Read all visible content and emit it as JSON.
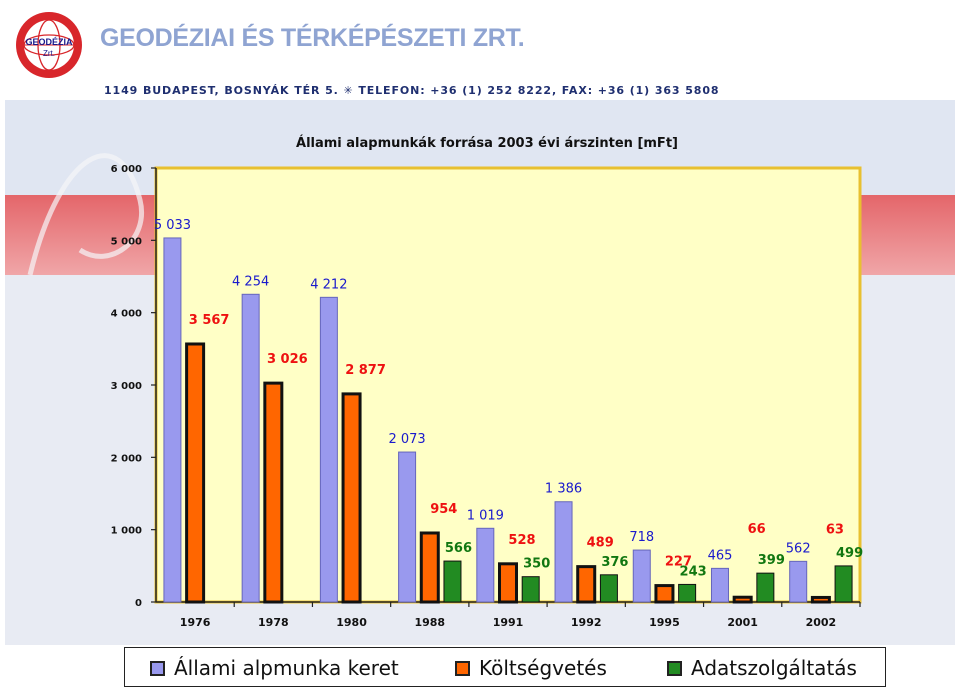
{
  "header": {
    "logo_text_top": "GEODÉZIA",
    "logo_text_bottom": "Zrt.",
    "company_name": "GEODÉZIAI ÉS TÉRKÉPÉSZETI ZRT.",
    "address": "1149 BUDAPEST, BOSNYÁK TÉR 5. ✳ TELEFON: +36 (1) 252 8222, FAX: +36 (1) 363 5808"
  },
  "colors": {
    "plot_background": "#ffffc6",
    "plot_border": "#e8c030",
    "series": [
      "#9999ee",
      "#ff6600",
      "#228b22"
    ],
    "label_colors": [
      "#1a1acc",
      "#ee1111",
      "#117711"
    ]
  },
  "chart_data": {
    "type": "bar",
    "title": "Állami alapmunkák forrása 2003 évi árszinten [mFt]",
    "categories": [
      "1976",
      "1978",
      "1980",
      "1988",
      "1991",
      "1992",
      "1995",
      "2001",
      "2002"
    ],
    "series": [
      {
        "name": "Állami alpmunka keret",
        "values": [
          5033,
          4254,
          4212,
          2073,
          1019,
          1386,
          718,
          465,
          562
        ],
        "labels": [
          "5 033",
          "4 254",
          "4 212",
          "2 073",
          "1 019",
          "1 386",
          "718",
          "465",
          "562"
        ]
      },
      {
        "name": "Költségvetés",
        "values": [
          3567,
          3026,
          2877,
          954,
          528,
          489,
          227,
          66,
          63
        ],
        "labels": [
          "3 567",
          "3 026",
          "2 877",
          "954",
          "528",
          "489",
          "227",
          "66",
          "63"
        ]
      },
      {
        "name": "Adatszolgáltatás",
        "values": [
          null,
          null,
          null,
          566,
          350,
          376,
          243,
          399,
          499
        ],
        "labels": [
          "",
          "",
          "",
          "566",
          "350",
          "376",
          "243",
          "399",
          "499"
        ]
      }
    ],
    "yticks": [
      0,
      1000,
      2000,
      3000,
      4000,
      5000,
      6000
    ],
    "ytick_labels": [
      "0",
      "1 000",
      "2 000",
      "3 000",
      "4 000",
      "5 000",
      "6 000"
    ],
    "ylim": [
      0,
      6000
    ],
    "grid": false,
    "legend_position": "bottom"
  }
}
